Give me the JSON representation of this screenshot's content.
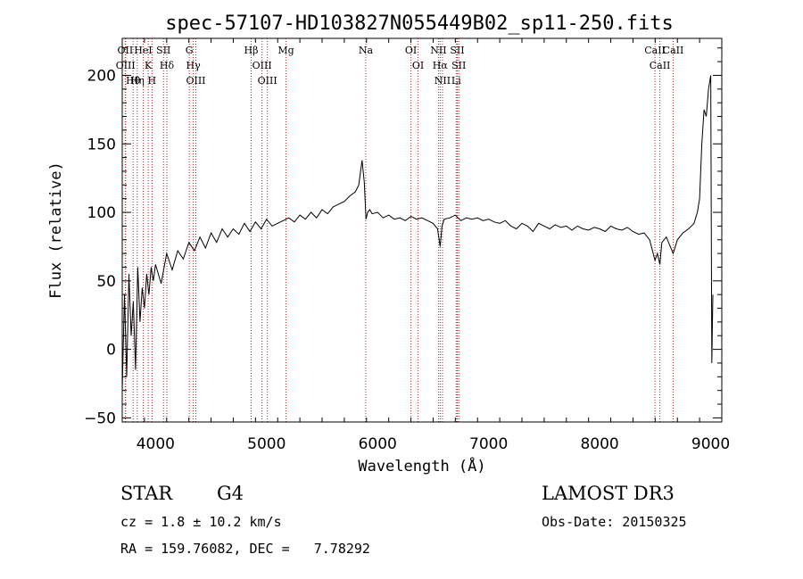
{
  "chart_data": {
    "type": "line",
    "title": "spec-57107-HD103827N055449B02_sp11-250.fits",
    "xlabel": "Wavelength (Å)",
    "ylabel": "Flux (relative)",
    "xlim": [
      3700,
      9100
    ],
    "ylim": [
      -53,
      227
    ],
    "x_ticks": [
      4000,
      5000,
      6000,
      7000,
      8000,
      9000
    ],
    "y_ticks": [
      -50,
      0,
      50,
      100,
      150,
      200
    ],
    "grid": false,
    "spectrum": {
      "x": [
        3700,
        3720,
        3740,
        3760,
        3780,
        3800,
        3820,
        3840,
        3860,
        3880,
        3900,
        3920,
        3940,
        3960,
        3980,
        4000,
        4050,
        4100,
        4150,
        4200,
        4250,
        4300,
        4350,
        4400,
        4450,
        4500,
        4550,
        4600,
        4650,
        4700,
        4750,
        4800,
        4850,
        4900,
        4950,
        5000,
        5050,
        5100,
        5150,
        5200,
        5250,
        5300,
        5350,
        5400,
        5450,
        5500,
        5550,
        5600,
        5650,
        5700,
        5750,
        5800,
        5830,
        5860,
        5880,
        5895,
        5910,
        5930,
        5950,
        6000,
        6050,
        6100,
        6150,
        6200,
        6250,
        6300,
        6350,
        6400,
        6450,
        6500,
        6540,
        6563,
        6580,
        6600,
        6650,
        6700,
        6750,
        6800,
        6850,
        6900,
        6950,
        7000,
        7050,
        7100,
        7150,
        7200,
        7250,
        7300,
        7350,
        7400,
        7450,
        7500,
        7550,
        7600,
        7650,
        7700,
        7750,
        7800,
        7850,
        7900,
        7950,
        8000,
        8050,
        8100,
        8150,
        8200,
        8250,
        8300,
        8350,
        8400,
        8450,
        8498,
        8520,
        8542,
        8560,
        8600,
        8662,
        8700,
        8750,
        8800,
        8850,
        8880,
        8900,
        8920,
        8940,
        8960,
        8980,
        9000,
        9010,
        9020
      ],
      "y": [
        -30,
        40,
        -20,
        55,
        10,
        35,
        -15,
        60,
        20,
        45,
        30,
        55,
        40,
        60,
        50,
        62,
        48,
        70,
        58,
        72,
        66,
        78,
        72,
        82,
        74,
        85,
        78,
        88,
        82,
        88,
        84,
        92,
        86,
        93,
        88,
        95,
        90,
        92,
        94,
        96,
        93,
        98,
        95,
        100,
        96,
        102,
        99,
        104,
        106,
        108,
        112,
        115,
        120,
        138,
        122,
        95,
        100,
        102,
        99,
        100,
        96,
        98,
        95,
        96,
        94,
        97,
        95,
        96,
        94,
        92,
        88,
        75,
        90,
        95,
        96,
        98,
        94,
        96,
        95,
        96,
        94,
        95,
        93,
        92,
        94,
        90,
        88,
        92,
        90,
        86,
        92,
        90,
        88,
        91,
        89,
        90,
        87,
        90,
        88,
        87,
        89,
        88,
        86,
        90,
        88,
        87,
        89,
        86,
        84,
        85,
        80,
        65,
        70,
        62,
        78,
        82,
        70,
        80,
        85,
        88,
        92,
        100,
        110,
        150,
        175,
        170,
        190,
        200,
        -10,
        40
      ]
    },
    "spectral_lines": [
      {
        "name": "Hθ",
        "wavelength": 3798
      },
      {
        "name": "OII",
        "wavelength": 3727
      },
      {
        "name": "OIII",
        "wavelength": 3730
      },
      {
        "name": "K",
        "wavelength": 3934
      },
      {
        "name": "HeI",
        "wavelength": 3889
      },
      {
        "name": "Hη",
        "wavelength": 3835
      },
      {
        "name": "SII",
        "wavelength": 4072
      },
      {
        "name": "H",
        "wavelength": 3968
      },
      {
        "name": "Hδ",
        "wavelength": 4102
      },
      {
        "name": "OIII",
        "wavelength": 4363
      },
      {
        "name": "Hγ",
        "wavelength": 4340
      },
      {
        "name": "G",
        "wavelength": 4304
      },
      {
        "name": "Hβ",
        "wavelength": 4861
      },
      {
        "name": "OIII",
        "wavelength": 4959
      },
      {
        "name": "OIII",
        "wavelength": 5007
      },
      {
        "name": "Mg",
        "wavelength": 5175
      },
      {
        "name": "Na",
        "wavelength": 5893
      },
      {
        "name": "OI",
        "wavelength": 6300
      },
      {
        "name": "OI",
        "wavelength": 6364
      },
      {
        "name": "Hα",
        "wavelength": 6563
      },
      {
        "name": "NII",
        "wavelength": 6548
      },
      {
        "name": "NII",
        "wavelength": 6584
      },
      {
        "name": "SII",
        "wavelength": 6717
      },
      {
        "name": "Li",
        "wavelength": 6708
      },
      {
        "name": "SII",
        "wavelength": 6731
      },
      {
        "name": "CaII",
        "wavelength": 8542
      },
      {
        "name": "CaII",
        "wavelength": 8498
      },
      {
        "name": "CaII",
        "wavelength": 8662
      }
    ]
  },
  "footer": {
    "object_class": "STAR",
    "subclass": "G4",
    "survey": "LAMOST DR3",
    "redshift": "cz = 1.8 ± 10.2 km/s",
    "obs_date": "Obs-Date: 20150325",
    "coords": "RA = 159.76082, DEC =   7.78292"
  },
  "colors": {
    "spectrum": "#000000",
    "line_markers": "#b22222",
    "axes": "#000000"
  }
}
